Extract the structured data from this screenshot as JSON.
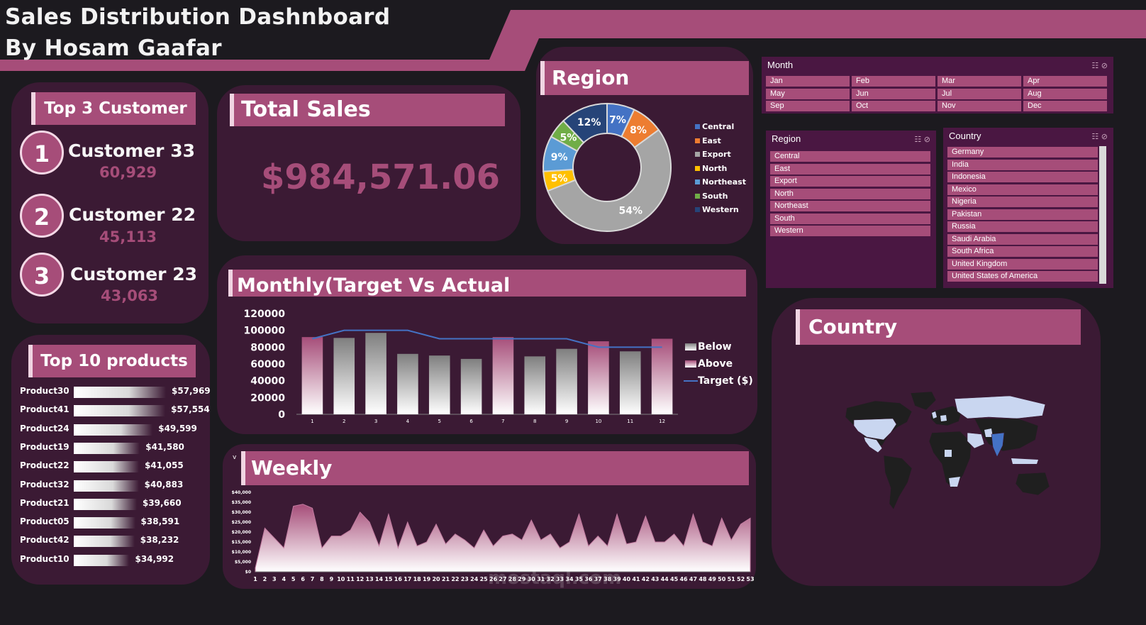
{
  "header": {
    "title_line1": "Sales Distribution Dashnboard",
    "title_line2": "By Hosam Gaafar",
    "accent_color": "#a64d79"
  },
  "top_customers": {
    "heading": "Top 3 Customer",
    "items": [
      {
        "rank": "1",
        "name": "Customer 33",
        "value": "60,929"
      },
      {
        "rank": "2",
        "name": "Customer 22",
        "value": "45,113"
      },
      {
        "rank": "3",
        "name": "Customer 23",
        "value": "43,063"
      }
    ]
  },
  "total_sales": {
    "heading": "Total Sales",
    "value": "$984,571.06"
  },
  "region_chart": {
    "heading": "Region",
    "chart_data": {
      "type": "pie",
      "labels": [
        "Central",
        "East",
        "Export",
        "North",
        "Northeast",
        "South",
        "Western"
      ],
      "values": [
        7,
        8,
        54,
        5,
        9,
        5,
        12
      ],
      "value_labels": [
        "7%",
        "8%",
        "54%",
        "5%",
        "9%",
        "5%",
        "12%"
      ],
      "colors": [
        "#4472c4",
        "#ed7d31",
        "#a5a5a5",
        "#ffc000",
        "#5b9bd5",
        "#70ad47",
        "#264478"
      ],
      "legend_position": "right"
    }
  },
  "slicers": {
    "month": {
      "title": "Month",
      "items": [
        "Jan",
        "Feb",
        "Mar",
        "Apr",
        "May",
        "Jun",
        "Jul",
        "Aug",
        "Sep",
        "Oct",
        "Nov",
        "Dec"
      ]
    },
    "region": {
      "title": "Region",
      "items": [
        "Central",
        "East",
        "Export",
        "North",
        "Northeast",
        "South",
        "Western"
      ]
    },
    "country": {
      "title": "Country",
      "items": [
        "Germany",
        "India",
        "Indonesia",
        "Mexico",
        "Nigeria",
        "Pakistan",
        "Russia",
        "Saudi Arabia",
        "South Africa",
        "United Kingdom",
        "United States of America"
      ]
    }
  },
  "top_products": {
    "heading": "Top 10 products",
    "items": [
      {
        "name": "Product30",
        "value": 57969,
        "label": "$57,969"
      },
      {
        "name": "Product41",
        "value": 57554,
        "label": "$57,554"
      },
      {
        "name": "Product24",
        "value": 49599,
        "label": "$49,599"
      },
      {
        "name": "Product19",
        "value": 41580,
        "label": "$41,580"
      },
      {
        "name": "Product22",
        "value": 41055,
        "label": "$41,055"
      },
      {
        "name": "Product32",
        "value": 40883,
        "label": "$40,883"
      },
      {
        "name": "Product21",
        "value": 39660,
        "label": "$39,660"
      },
      {
        "name": "Product05",
        "value": 38591,
        "label": "$38,591"
      },
      {
        "name": "Product42",
        "value": 38232,
        "label": "$38,232"
      },
      {
        "name": "Product10",
        "value": 34992,
        "label": "$34,992"
      }
    ]
  },
  "monthly_chart": {
    "heading": "Monthly(Target Vs Actual",
    "chart_data": {
      "type": "bar",
      "categories": [
        "1",
        "2",
        "3",
        "4",
        "5",
        "6",
        "7",
        "8",
        "9",
        "10",
        "11",
        "12"
      ],
      "series": [
        {
          "name": "Below",
          "values": [
            null,
            91000,
            97000,
            72000,
            70000,
            66000,
            null,
            69000,
            78000,
            null,
            75000,
            null
          ],
          "color": "#bfbfbf"
        },
        {
          "name": "Above",
          "values": [
            92000,
            null,
            null,
            null,
            null,
            null,
            92000,
            null,
            null,
            87000,
            null,
            90000
          ],
          "color": "#a64d79"
        },
        {
          "name": "Target ($)",
          "type": "line",
          "values": [
            90000,
            100000,
            100000,
            100000,
            90000,
            90000,
            90000,
            90000,
            90000,
            80000,
            80000,
            80000
          ],
          "color": "#4472c4"
        }
      ],
      "y_ticks": [
        "0",
        "20000",
        "40000",
        "60000",
        "80000",
        "100000",
        "120000"
      ],
      "ylim": [
        0,
        120000
      ],
      "legend_position": "right"
    }
  },
  "weekly_chart": {
    "heading": "Weekly",
    "filter_glyph": "v",
    "chart_data": {
      "type": "area",
      "x": [
        "1",
        "2",
        "3",
        "4",
        "5",
        "6",
        "7",
        "8",
        "9",
        "10",
        "11",
        "12",
        "13",
        "14",
        "15",
        "16",
        "17",
        "18",
        "19",
        "20",
        "21",
        "22",
        "23",
        "24",
        "25",
        "26",
        "27",
        "28",
        "29",
        "30",
        "31",
        "32",
        "33",
        "34",
        "35",
        "36",
        "37",
        "38",
        "39",
        "40",
        "41",
        "42",
        "43",
        "44",
        "45",
        "46",
        "47",
        "48",
        "49",
        "50",
        "51",
        "52",
        "53"
      ],
      "values": [
        2000,
        22000,
        17000,
        12000,
        33000,
        34000,
        32000,
        12000,
        18000,
        18000,
        21000,
        30000,
        25000,
        13000,
        29000,
        12000,
        25000,
        13000,
        15000,
        24000,
        14000,
        19000,
        16000,
        12000,
        21000,
        13000,
        18000,
        19000,
        16000,
        26000,
        16000,
        19000,
        12000,
        15000,
        29000,
        13000,
        18000,
        13000,
        29000,
        14000,
        15000,
        28000,
        15000,
        15000,
        19000,
        13000,
        29000,
        15000,
        13000,
        27000,
        16000,
        24000,
        27000
      ],
      "y_ticks": [
        "$0",
        "$5,000",
        "$10,000",
        "$15,000",
        "$20,000",
        "$25,000",
        "$30,000",
        "$35,000",
        "$40,000"
      ],
      "ylim": [
        0,
        40000
      ]
    }
  },
  "country_map": {
    "heading": "Country",
    "land_color": "#1f1f1f",
    "highlight_color": "#c9d6f0",
    "india_color": "#4472c4"
  },
  "watermark": {
    "text": "mostaql.com"
  }
}
